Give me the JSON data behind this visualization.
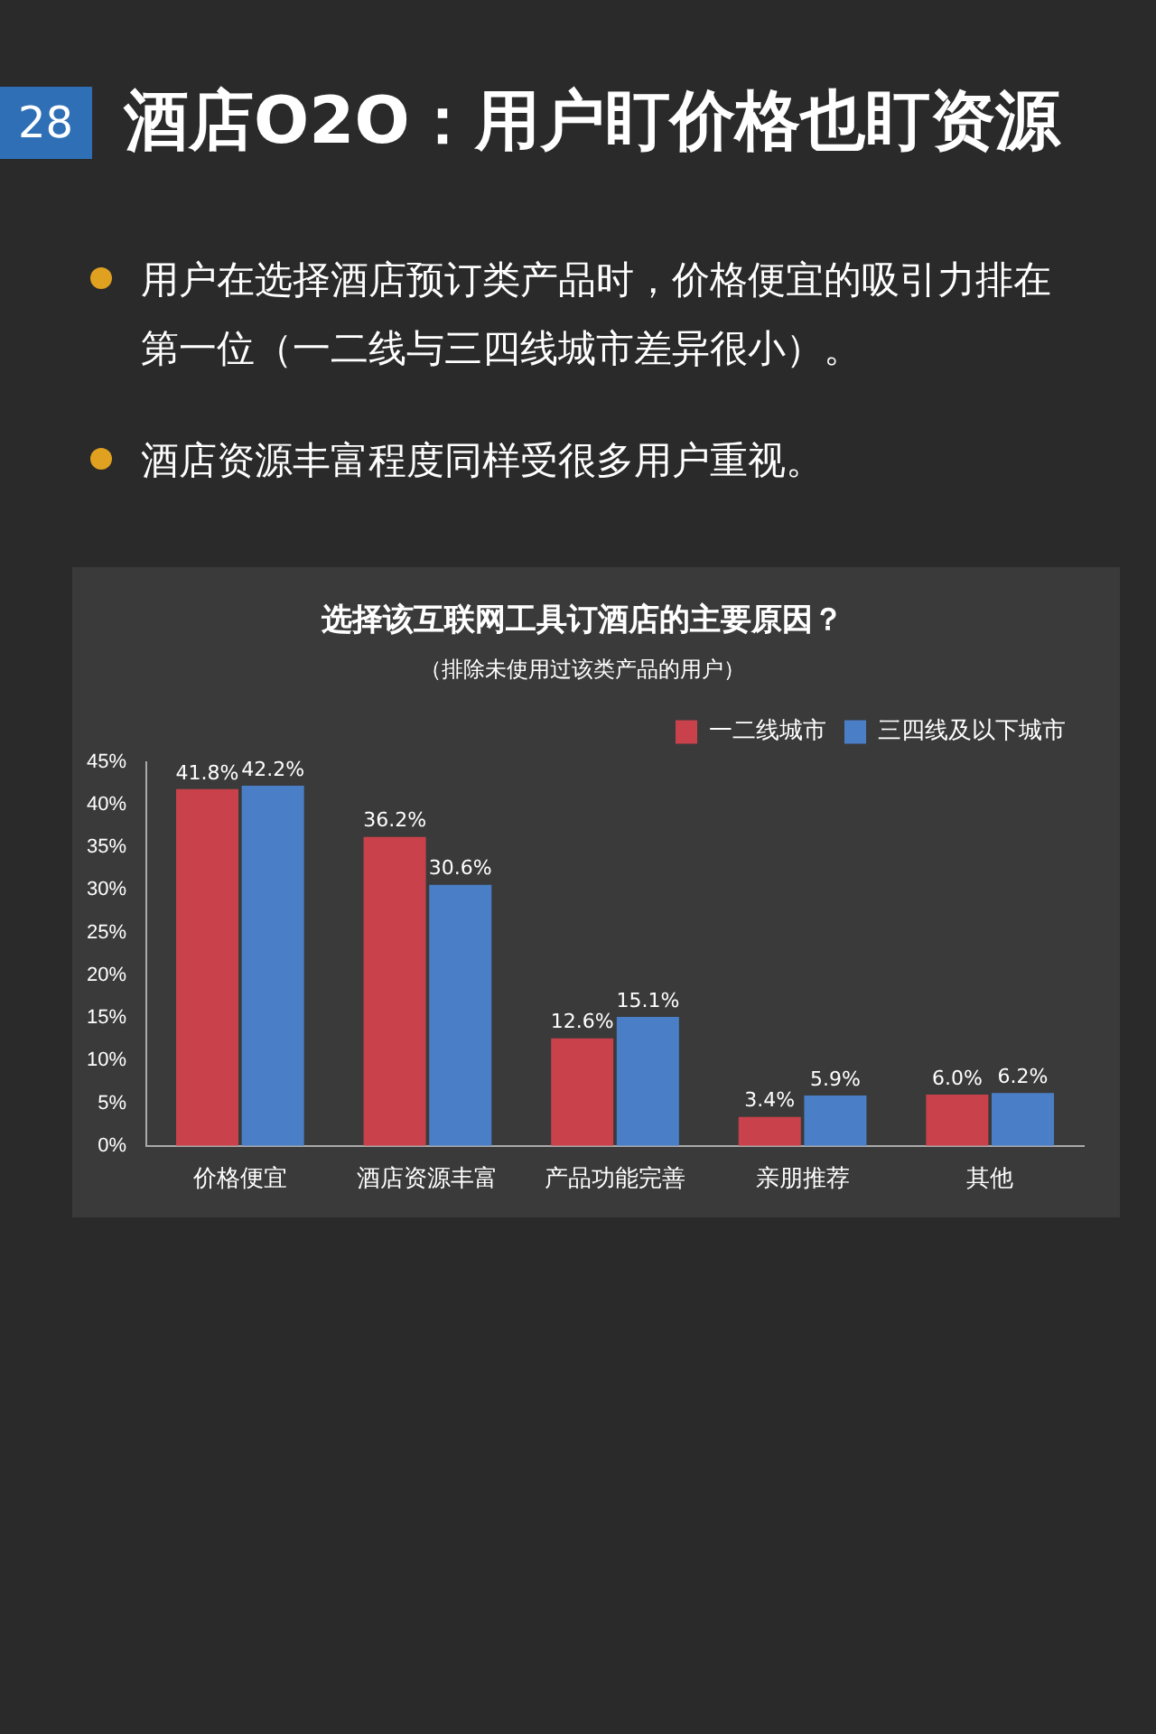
{
  "chart_data": {
    "type": "bar",
    "title": "选择该互联网工具订酒店的主要原因？",
    "subtitle": "（排除未使用过该类产品的用户）",
    "annotations": [
      "28",
      "酒店O2O：用户盯价格也盯资源",
      "用户在选择酒店预订类产品时，价格便宜的吸引力排在第一位（一二线与三四线城市差异很小）。",
      "酒店资源丰富程度同样受很多用户重视。"
    ],
    "categories": [
      "价格便宜",
      "酒店资源丰富",
      "产品功能完善",
      "亲朋推荐",
      "其他"
    ],
    "series": [
      {
        "name": "一二线城市",
        "color": "#c9414a",
        "values": [
          41.8,
          36.2,
          12.6,
          3.4,
          6.0
        ],
        "value_labels": [
          "41.8%",
          "36.2%",
          "12.6%",
          "3.4%",
          "6.0%"
        ]
      },
      {
        "name": "三四线及以下城市",
        "color": "#4a7fc8",
        "values": [
          42.2,
          30.6,
          15.1,
          5.9,
          6.2
        ],
        "value_labels": [
          "42.2%",
          "30.6%",
          "15.1%",
          "5.9%",
          "6.2%"
        ]
      }
    ],
    "ylim": [
      0,
      45
    ],
    "yticks": [
      {
        "value": 0,
        "label": "0%"
      },
      {
        "value": 5,
        "label": "5%"
      },
      {
        "value": 10,
        "label": "10%"
      },
      {
        "value": 15,
        "label": "15%"
      },
      {
        "value": 20,
        "label": "20%"
      },
      {
        "value": 25,
        "label": "25%"
      },
      {
        "value": 30,
        "label": "30%"
      },
      {
        "value": 35,
        "label": "35%"
      },
      {
        "value": 40,
        "label": "40%"
      },
      {
        "value": 45,
        "label": "45%"
      }
    ],
    "legend": "top right"
  }
}
